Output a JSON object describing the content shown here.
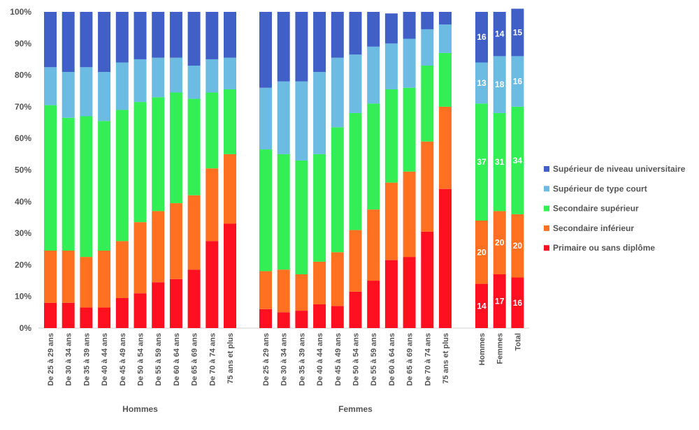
{
  "chart_data": {
    "type": "bar",
    "stacked": true,
    "ylim": [
      0,
      100
    ],
    "yticks": [
      "0%",
      "10%",
      "20%",
      "30%",
      "40%",
      "50%",
      "60%",
      "70%",
      "80%",
      "90%",
      "100%"
    ],
    "legend_position": "right",
    "groups": [
      {
        "label": "Hommes",
        "categories": [
          "De 25 à 29 ans",
          "De 30 à 34 ans",
          "De 35 à 39 ans",
          "De 40 à 44 ans",
          "De 45 à 49 ans",
          "De 50 à 54 ans",
          "De 55 à 59 ans",
          "De 60 à 64 ans",
          "De 65 à 69 ans",
          "De 70 à 74 ans",
          "75 ans et plus"
        ]
      },
      {
        "label": "Femmes",
        "categories": [
          "De 25 à 29 ans",
          "De 30 à 34 ans",
          "De 35 à 39 ans",
          "De 40 à 44 ans",
          "De 45 à 49 ans",
          "De 50 à 54 ans",
          "De 55 à 59 ans",
          "De 60 à 64 ans",
          "De 65 à 69 ans",
          "De 70 à 74 ans",
          "75 ans et plus"
        ]
      },
      {
        "label": "",
        "categories": [
          "Hommes",
          "Femmes",
          "Total"
        ]
      }
    ],
    "series": [
      {
        "name": "Primaire ou sans diplôme",
        "color": "#ff1020",
        "values": [
          [
            8,
            8,
            6.5,
            6.5,
            9.5,
            11,
            14.5,
            15.5,
            18.5,
            27.5,
            33
          ],
          [
            6,
            5,
            5.5,
            7.5,
            7,
            11.5,
            15,
            21.5,
            22.5,
            30.5,
            44
          ],
          [
            14,
            17,
            16
          ]
        ],
        "labels": [
          null,
          null,
          [
            "14",
            "17",
            "16"
          ]
        ]
      },
      {
        "name": "Secondaire inférieur",
        "color": "#ff7020",
        "values": [
          [
            16.5,
            16.5,
            16,
            18,
            18,
            22.5,
            22.5,
            24,
            23.5,
            23,
            22
          ],
          [
            12,
            13.5,
            11.5,
            13.5,
            17,
            19.5,
            22.5,
            24.5,
            27,
            28.5,
            26
          ],
          [
            20,
            20,
            20
          ]
        ],
        "labels": [
          null,
          null,
          [
            "20",
            "20",
            "20"
          ]
        ]
      },
      {
        "name": "Secondaire supérieur",
        "color": "#33ee55",
        "values": [
          [
            46,
            42,
            44.5,
            41,
            41.5,
            38,
            36,
            35,
            30.5,
            24,
            20.5
          ],
          [
            38.5,
            36.5,
            36,
            34,
            39.5,
            37,
            33.5,
            29.5,
            26.5,
            24,
            17
          ],
          [
            37,
            31,
            34
          ]
        ],
        "labels": [
          null,
          null,
          [
            "37",
            "31",
            "34"
          ]
        ]
      },
      {
        "name": "Supérieur de type court",
        "color": "#6bbbe3",
        "values": [
          [
            12,
            14.5,
            15.5,
            15.5,
            15,
            13.5,
            12.5,
            11,
            10.5,
            10.5,
            10
          ],
          [
            19.5,
            23,
            25,
            26,
            22,
            18.5,
            18,
            14.5,
            15.5,
            11.5,
            9
          ],
          [
            13,
            18,
            16
          ]
        ],
        "labels": [
          null,
          null,
          [
            "13",
            "18",
            "16"
          ]
        ]
      },
      {
        "name": "Supérieur de niveau universitaire",
        "color": "#4060c8",
        "values": [
          [
            17.5,
            19,
            17.5,
            19,
            16,
            15,
            14.5,
            14.5,
            17,
            15,
            14.5
          ],
          [
            24,
            22,
            22,
            19,
            14.5,
            13.5,
            11,
            9.5,
            8.5,
            5.5,
            4
          ],
          [
            16,
            14,
            15
          ]
        ],
        "labels": [
          null,
          null,
          [
            "16",
            "14",
            "15"
          ]
        ]
      }
    ],
    "legend_order": [
      4,
      3,
      2,
      1,
      0
    ]
  }
}
